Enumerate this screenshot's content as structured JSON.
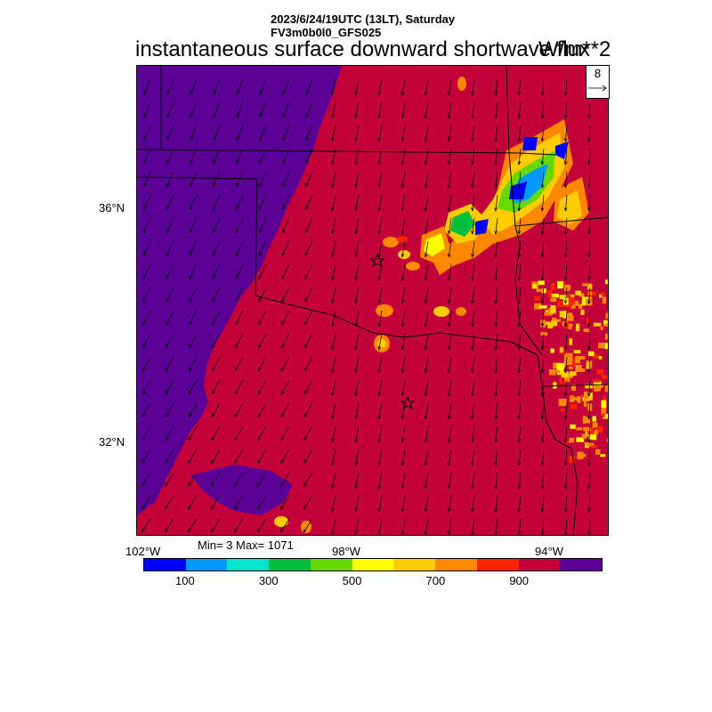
{
  "header": {
    "datetime": "2023/6/24/19UTC (13LT), Saturday",
    "model": "FV3m0b0l0_GFS025"
  },
  "title": "instantaneous surface downward shortwave flux",
  "units": "W/m**2",
  "lat_labels": [
    "36°N",
    "32°N"
  ],
  "lon_labels": [
    "102°W",
    "98°W",
    "94°W"
  ],
  "stats": "Min= 3 Max= 1071",
  "reference_vector": {
    "label": "8"
  },
  "colorbar": {
    "colors": [
      "#0000ff",
      "#0099ff",
      "#00e5cc",
      "#00bf40",
      "#66d900",
      "#ffff00",
      "#ffcc00",
      "#ff8800",
      "#ff2200",
      "#c4003a",
      "#5a0096"
    ],
    "labels": [
      "100",
      "300",
      "500",
      "700",
      "900"
    ]
  },
  "map": {
    "background_field_color": "#c4003a",
    "low_field_color": "#5a0096",
    "markers": [
      "star-icon",
      "star-icon"
    ]
  }
}
